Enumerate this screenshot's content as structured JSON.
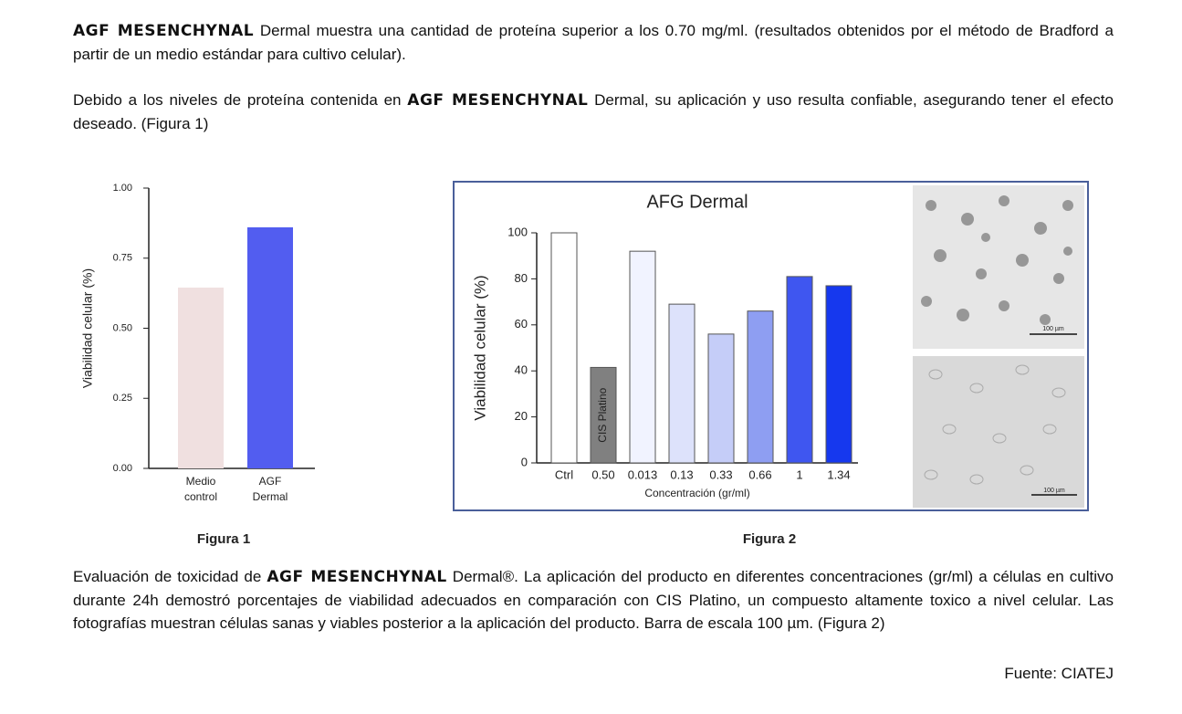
{
  "paragraphs": [
    [
      "AGF MESENCHYNAL",
      " Dermal muestra una cantidad de proteína superior a los 0.70 mg/ml. (resultados obtenidos por el método de Bradford a partir de un medio estándar para cultivo celular)."
    ],
    [
      "Debido a los niveles de proteína contenida en ",
      "AGF MESENCHYNAL",
      " Dermal, su aplicación y uso resulta confiable, asegurando tener el efecto deseado. (Figura 1)"
    ],
    [
      "Evaluación de toxicidad de ",
      "AGF MESENCHYNAL",
      " Dermal®. La aplicación del producto en diferentes concentraciones (gr/ml) a células en cultivo durante 24h demostró porcentajes de viabilidad adecuados en comparación con CIS Platino, un compuesto altamente toxico a nivel celular. Las fotografías muestran células sanas y viables posterior a la aplicación del producto. Barra de escala 100 µm. (Figura 2)"
    ]
  ],
  "source": "Fuente: CIATEJ",
  "figure2_images": [
    "100 µm",
    "100 µm"
  ],
  "chart_data": [
    {
      "type": "bar",
      "caption": "Figura 1",
      "y_label": "Viabilidad celular (%)",
      "categories": [
        "Medio control",
        "AGF Dermal"
      ],
      "values": [
        0.645,
        0.86
      ],
      "colors": [
        "#f0e0e0",
        "#525df0"
      ],
      "ylim": [
        0,
        1
      ],
      "yticks": [
        {
          "value": 0,
          "label": "0.00"
        },
        {
          "value": 0.25,
          "label": "0.25"
        },
        {
          "value": 0.5,
          "label": "0.50"
        },
        {
          "value": 0.75,
          "label": "0.75"
        },
        {
          "value": 1,
          "label": "1.00"
        }
      ]
    },
    {
      "type": "bar",
      "title": "AFG Dermal",
      "caption": "Figura 2",
      "y_label": "Viabilidad celular (%)",
      "x_label": "Concentración (gr/ml)",
      "annotation": "CIS Platino",
      "categories": [
        "Ctrl",
        "0.50",
        "0.013",
        "0.13",
        "0.33",
        "0.66",
        "1",
        "1.34"
      ],
      "values": [
        100,
        41.5,
        92,
        69,
        56,
        66,
        81,
        77
      ],
      "colors": [
        "#ffffff",
        "#808080",
        "#f1f3ff",
        "#dde2fb",
        "#c5cdf8",
        "#8e9ef2",
        "#3f56f0",
        "#1638ee"
      ],
      "ylim": [
        0,
        100
      ],
      "yticks": [
        0,
        20,
        40,
        60,
        80,
        100
      ]
    }
  ]
}
